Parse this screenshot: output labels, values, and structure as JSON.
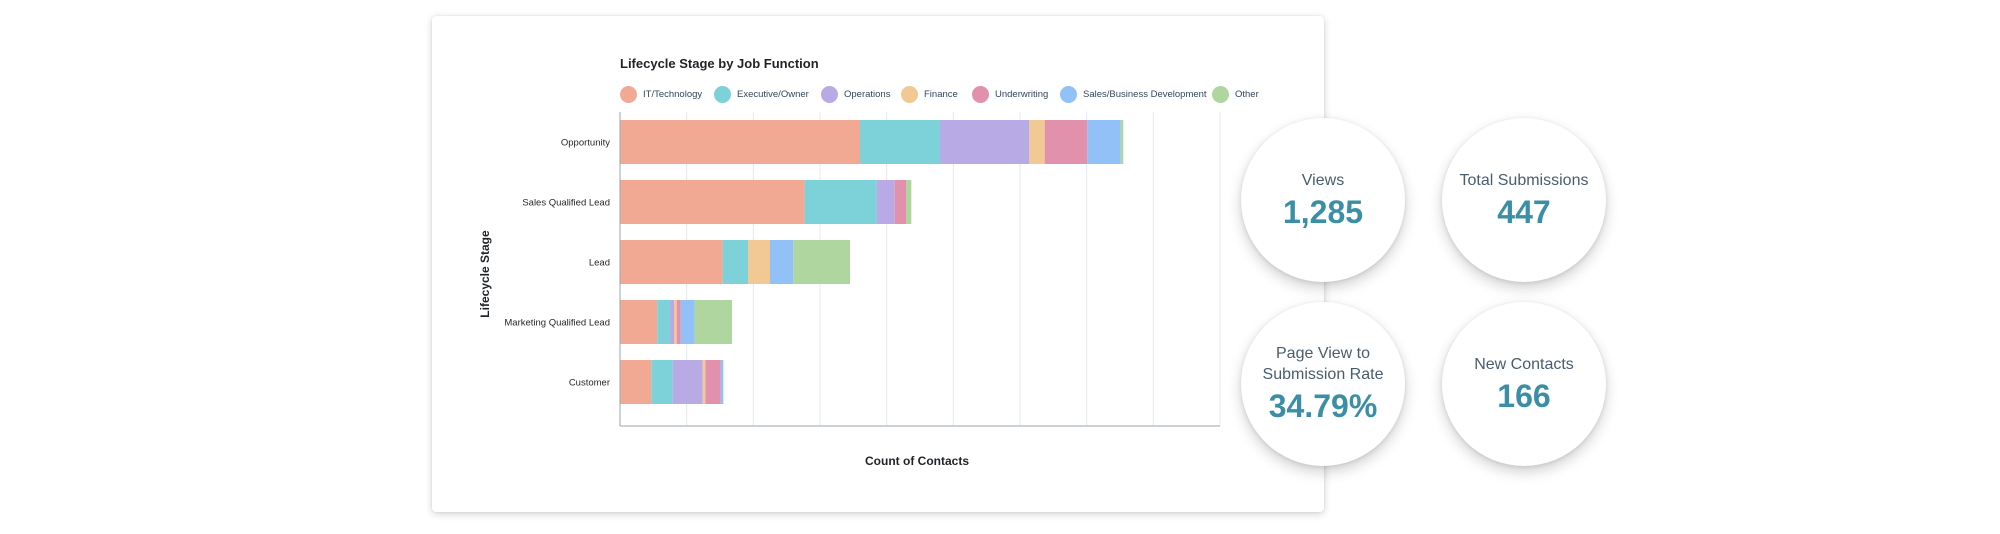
{
  "chart_data": {
    "type": "bar",
    "orientation": "horizontal",
    "stacked": true,
    "title": "Lifecycle Stage by Job Function",
    "xlabel": "Count of Contacts",
    "ylabel": "Lifecycle Stage",
    "categories": [
      "Opportunity",
      "Sales Qualified Lead",
      "Lead",
      "Marketing Qualified Lead",
      "Customer"
    ],
    "xlim": [
      0,
      90
    ],
    "grid": true,
    "legend_position": "top",
    "series": [
      {
        "name": "IT/Technology",
        "color": "#f2a994",
        "values": [
          36,
          27.7,
          15.4,
          5.6,
          4.7
        ]
      },
      {
        "name": "Executive/Owner",
        "color": "#7dd1d8",
        "values": [
          12,
          10.8,
          3.8,
          1.9,
          3.2
        ]
      },
      {
        "name": "Operations",
        "color": "#b8abe5",
        "values": [
          13.4,
          2.7,
          0,
          0.6,
          4.5
        ]
      },
      {
        "name": "Finance",
        "color": "#f2c894",
        "values": [
          2.3,
          0,
          3.3,
          0.4,
          0.4
        ]
      },
      {
        "name": "Underwriting",
        "color": "#e191ab",
        "values": [
          6.4,
          1.7,
          0,
          0.6,
          2.3
        ]
      },
      {
        "name": "Sales/Business Development",
        "color": "#92c1f7",
        "values": [
          5,
          0,
          3.5,
          2.1,
          0.4
        ]
      },
      {
        "name": "Other",
        "color": "#b0d6a0",
        "values": [
          0.4,
          0.8,
          8.5,
          5.6,
          0
        ]
      }
    ]
  },
  "stats": [
    {
      "label": "Views",
      "value": "1,285"
    },
    {
      "label": "Total Submissions",
      "value": "447"
    },
    {
      "label": "Page View to Submission Rate",
      "value": "34.79%"
    },
    {
      "label": "New Contacts",
      "value": "166"
    }
  ]
}
